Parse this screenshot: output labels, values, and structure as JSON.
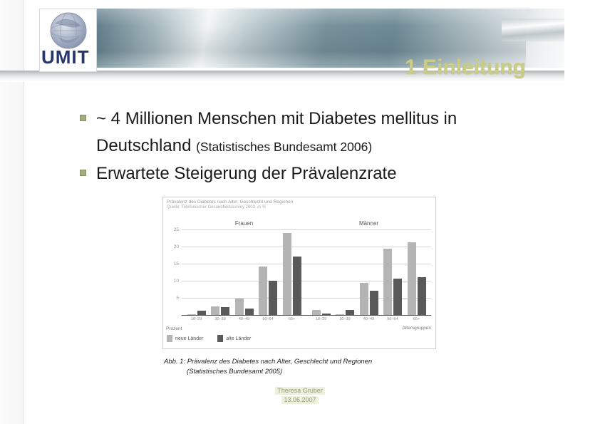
{
  "logo": {
    "text": "UMIT"
  },
  "header": {
    "title": "1 Einleitung"
  },
  "bullets": [
    {
      "text": "~ 4 Millionen Menschen mit Diabetes mellitus in Deutschland ",
      "note": "(Statistisches Bundesamt 2006)"
    },
    {
      "text": "Erwartete Steigerung der Prävalenzrate",
      "note": ""
    }
  ],
  "chart_data": {
    "type": "bar",
    "title": "Prävalenz des Diabetes nach Alter, Geschlecht und Regionen",
    "subtitle": "Quelle: Telefonischer Gesundheitssurvey 2003, in %",
    "groups": [
      "Frauen",
      "Männer"
    ],
    "categories": [
      "18–29",
      "30–39",
      "40–49",
      "50–64",
      "65+"
    ],
    "series": [
      {
        "name": "neue Länder",
        "color": "#b4b4b4",
        "frauen": [
          0.3,
          2.4,
          4.7,
          14.1,
          24.0
        ],
        "maenner": [
          1.4,
          0.2,
          9.4,
          19.4,
          21.2
        ]
      },
      {
        "name": "alte Länder",
        "color": "#595959",
        "frauen": [
          1.3,
          2.2,
          1.8,
          9.9,
          17.0
        ],
        "maenner": [
          0.4,
          1.4,
          7.0,
          10.6,
          11.1
        ]
      }
    ],
    "ylim": [
      0,
      25
    ],
    "yticks": [
      5,
      10,
      15,
      20,
      25
    ],
    "ylabel": "Prozent",
    "xlabel": "Altersgruppen",
    "grid": true,
    "legend_position": "bottom-left"
  },
  "caption": {
    "line1": "Abb. 1: Prävalenz des Diabetes nach Alter, Geschlecht und Regionen",
    "line2": "(Statistisches Bundesamt 2005)"
  },
  "footer": {
    "line1": "Theresa Gruber",
    "line2": "13.06.2007"
  }
}
